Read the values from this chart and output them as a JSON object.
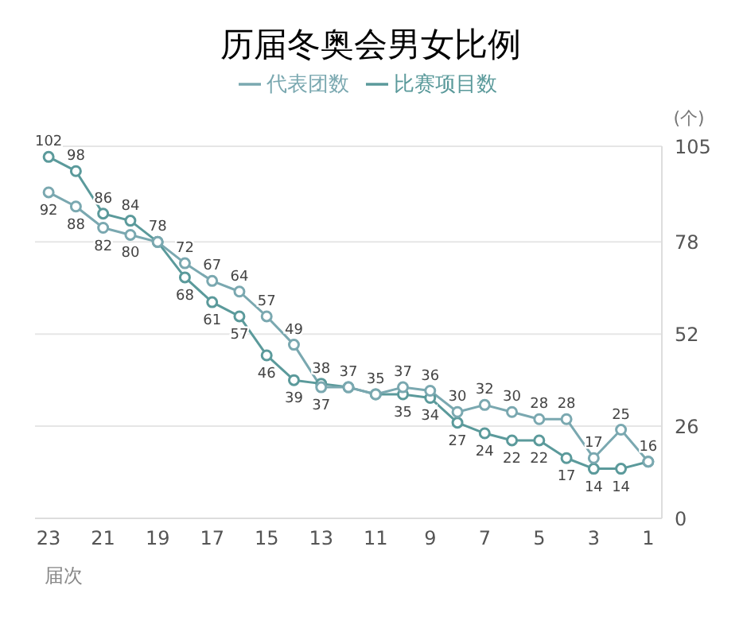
{
  "chart_data": {
    "type": "line",
    "title": "历届冬奥会男女比例",
    "xlabel": "届次",
    "ylabel": "(个)",
    "x": [
      1,
      2,
      3,
      4,
      5,
      6,
      7,
      8,
      9,
      10,
      11,
      12,
      13,
      14,
      15,
      16,
      17,
      18,
      19,
      20,
      21,
      22,
      23
    ],
    "series": [
      {
        "name": "比赛项目数",
        "color": "#5b9a9b",
        "values": [
          16,
          14,
          14,
          17,
          22,
          22,
          24,
          27,
          34,
          35,
          35,
          37,
          38,
          39,
          46,
          57,
          61,
          68,
          78,
          84,
          86,
          98,
          102
        ],
        "value_labels": [
          "16",
          "14",
          "14",
          "17",
          "22",
          "22",
          "24",
          "27",
          "34",
          "35",
          "35",
          "37",
          "38",
          "39",
          "46",
          "57",
          "61",
          "68",
          "78",
          "84",
          "86",
          "98",
          "102"
        ]
      },
      {
        "name": "代表团数",
        "color": "#7aa8b0",
        "values": [
          16,
          25,
          17,
          28,
          28,
          30,
          32,
          30,
          36,
          37,
          35,
          37,
          37,
          49,
          57,
          64,
          67,
          72,
          78,
          80,
          82,
          88,
          92
        ],
        "value_labels": [
          null,
          "25",
          "17",
          "28",
          "28",
          "30",
          "32",
          "30",
          "36",
          "37",
          null,
          null,
          "37",
          "49",
          "57",
          "64",
          "67",
          "72",
          null,
          "80",
          "82",
          "88",
          "92"
        ]
      }
    ],
    "xlim": [
      23.5,
      0.5
    ],
    "xticks": [
      1,
      3,
      5,
      7,
      9,
      11,
      13,
      15,
      17,
      19,
      21,
      23
    ],
    "ylim": [
      0,
      105
    ],
    "yticks": [
      0,
      26,
      52,
      78,
      105
    ],
    "grid": "y",
    "legend": "top",
    "marker": "circle",
    "line_style": "solid"
  }
}
